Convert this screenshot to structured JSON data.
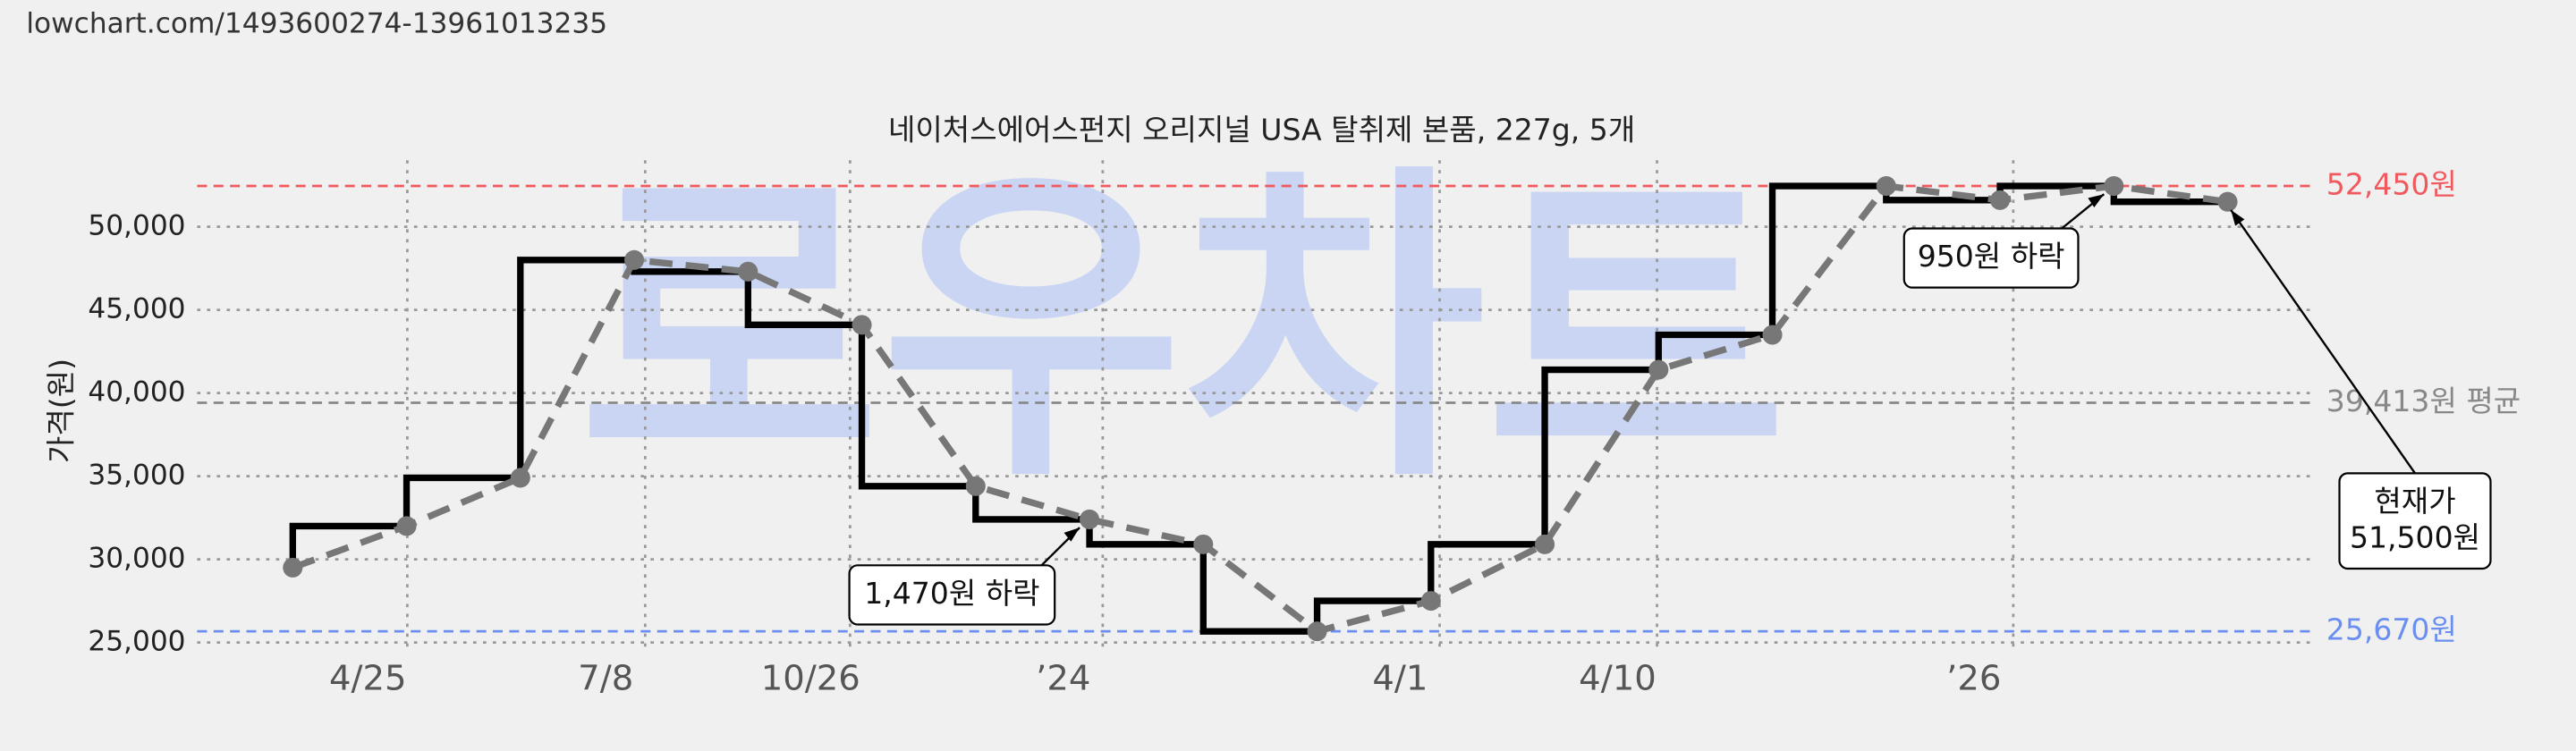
{
  "source_url": "lowchart.com/1493600274-13961013235",
  "watermark": "로우차트",
  "chart_data": {
    "type": "line",
    "title": "네이처스에어스펀지 오리지널 USA 탈취제 본품, 227g, 5개",
    "y_label": "가격(원)",
    "x": [
      0,
      1,
      2,
      3,
      4,
      5,
      6,
      7,
      8,
      9,
      10,
      11,
      12,
      13,
      14,
      15,
      16,
      17
    ],
    "xlim": [
      -0.84,
      17.78
    ],
    "xticks": [
      {
        "value": 0.66,
        "label": "4/25"
      },
      {
        "value": 2.75,
        "label": "7/8"
      },
      {
        "value": 4.55,
        "label": "10/26"
      },
      {
        "value": 6.77,
        "label": "’24"
      },
      {
        "value": 9.73,
        "label": "4/1"
      },
      {
        "value": 11.64,
        "label": "4/10"
      },
      {
        "value": 14.77,
        "label": "’26"
      }
    ],
    "ylim": [
      24600,
      54000
    ],
    "yticks": [
      {
        "value": 25000,
        "label": "25,000"
      },
      {
        "value": 30000,
        "label": "30,000"
      },
      {
        "value": 35000,
        "label": "35,000"
      },
      {
        "value": 40000,
        "label": "40,000"
      },
      {
        "value": 45000,
        "label": "45,000"
      },
      {
        "value": 50000,
        "label": "50,000"
      }
    ],
    "grid": true,
    "series": [
      {
        "color": "#777777",
        "values": [
          29500,
          32000,
          34900,
          48000,
          47300,
          44100,
          34400,
          32400,
          30900,
          25670,
          27500,
          30900,
          41400,
          43500,
          52450,
          51600,
          52450,
          51500
        ]
      }
    ],
    "step_color": "#000000",
    "reference_lines": [
      {
        "value": 52450,
        "label": "52,450원",
        "color": "#f0595e"
      },
      {
        "value": 39413,
        "label": "39,413원 평균",
        "color": "#888888"
      },
      {
        "value": 25670,
        "label": "25,670원",
        "color": "#6a8ff0"
      }
    ],
    "annotations": [
      {
        "lines": [
          "1,470원 하락"
        ]
      },
      {
        "lines": [
          "950원 하락"
        ]
      },
      {
        "lines": [
          "현재가",
          "51,500원"
        ]
      }
    ]
  }
}
